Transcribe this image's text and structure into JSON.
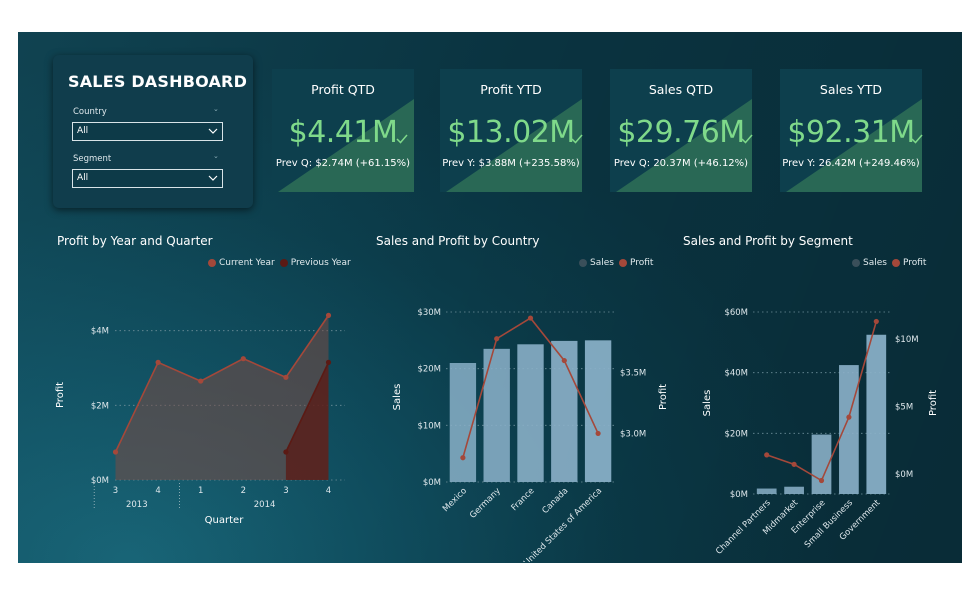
{
  "filters": {
    "title": "SALES DASHBOARD",
    "country": {
      "label": "Country",
      "value": "All"
    },
    "segment": {
      "label": "Segment",
      "value": "All"
    }
  },
  "kpis": [
    {
      "title": "Profit QTD",
      "value": "$4.41M",
      "prev": "Prev Q: $2.74M (+61.15%)"
    },
    {
      "title": "Profit YTD",
      "value": "$13.02M",
      "prev": "Prev Y: $3.88M (+235.58%)"
    },
    {
      "title": "Sales QTD",
      "value": "$29.76M",
      "prev": "Prev Q: 20.37M (+46.12%)"
    },
    {
      "title": "Sales YTD",
      "value": "$92.31M",
      "prev": "Prev Y: 26.42M (+249.46%)"
    }
  ],
  "colors": {
    "kpi_value": "#7fd98a",
    "current_year": "#a4483a",
    "previous_year": "#5b1a14",
    "sales_bar": "#8ab0c8",
    "sales_legend": "#3a4f5a",
    "profit_line": "#a4483a"
  },
  "chart_data": [
    {
      "id": "profit-by-quarter",
      "type": "area",
      "title": "Profit by Year and Quarter",
      "xlabel": "Quarter",
      "ylabel": "Profit",
      "ylim": [
        0,
        4500000
      ],
      "yticks": [
        {
          "value": 0,
          "label": "$0M"
        },
        {
          "value": 2000000,
          "label": "$2M"
        },
        {
          "value": 4000000,
          "label": "$4M"
        }
      ],
      "categories": [
        "3",
        "4",
        "1",
        "2",
        "3",
        "4"
      ],
      "years": [
        {
          "label": "2013",
          "quarters": 2
        },
        {
          "label": "2014",
          "quarters": 4
        }
      ],
      "legend": "top-right",
      "grid": true,
      "series": [
        {
          "name": "Current Year",
          "values": [
            750000,
            3150000,
            2650000,
            3250000,
            2750000,
            4410000
          ]
        },
        {
          "name": "Previous Year",
          "values": [
            null,
            null,
            null,
            null,
            750000,
            3150000
          ]
        }
      ]
    },
    {
      "id": "sales-profit-country",
      "type": "bar",
      "title": "Sales and Profit by Country",
      "xlabel": "",
      "ylabel": "Sales",
      "y2label": "Profit",
      "ylim": [
        0,
        30000000
      ],
      "y2lim": [
        2600000,
        4000000
      ],
      "yticks": [
        {
          "value": 0,
          "label": "$0M"
        },
        {
          "value": 10000000,
          "label": "$10M"
        },
        {
          "value": 20000000,
          "label": "$20M"
        },
        {
          "value": 30000000,
          "label": "$30M"
        }
      ],
      "y2ticks": [
        {
          "value": 3000000,
          "label": "$3.0M"
        },
        {
          "value": 3500000,
          "label": "$3.5M"
        }
      ],
      "categories": [
        "Mexico",
        "Germany",
        "France",
        "Canada",
        "United States of America"
      ],
      "legend": "top-right",
      "grid": true,
      "series": [
        {
          "name": "Sales",
          "kind": "bar",
          "values": [
            21000000,
            23500000,
            24300000,
            24900000,
            25000000
          ]
        },
        {
          "name": "Profit",
          "kind": "line",
          "values": [
            2800000,
            3780000,
            3950000,
            3600000,
            3000000
          ]
        }
      ]
    },
    {
      "id": "sales-profit-segment",
      "type": "bar",
      "title": "Sales and Profit by Segment",
      "xlabel": "",
      "ylabel": "Sales",
      "y2label": "Profit",
      "ylim": [
        0,
        60000000
      ],
      "y2lim": [
        -1500000,
        12000000
      ],
      "yticks": [
        {
          "value": 0,
          "label": "$0M"
        },
        {
          "value": 20000000,
          "label": "$20M"
        },
        {
          "value": 40000000,
          "label": "$40M"
        },
        {
          "value": 60000000,
          "label": "$60M"
        }
      ],
      "y2ticks": [
        {
          "value": 0,
          "label": "$0M"
        },
        {
          "value": 5000000,
          "label": "$5M"
        },
        {
          "value": 10000000,
          "label": "$10M"
        }
      ],
      "categories": [
        "Channel Partners",
        "Midmarket",
        "Enterprise",
        "Small Business",
        "Government"
      ],
      "legend": "top-right",
      "grid": true,
      "series": [
        {
          "name": "Sales",
          "kind": "bar",
          "values": [
            1800000,
            2400000,
            19600000,
            42500000,
            52500000
          ]
        },
        {
          "name": "Profit",
          "kind": "line",
          "values": [
            1400000,
            700000,
            -500000,
            4200000,
            11300000
          ]
        }
      ]
    }
  ]
}
